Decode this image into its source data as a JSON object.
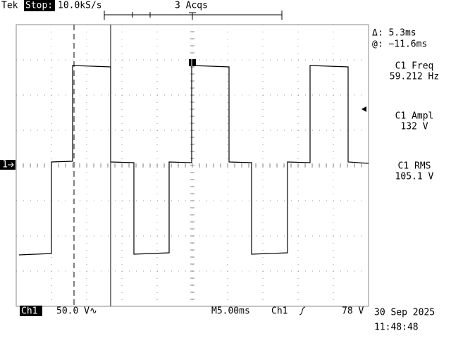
{
  "header": {
    "brand": "Tek",
    "state": "Stop:",
    "sample_rate": "10.0kS/s",
    "acquisitions": "3 Acqs"
  },
  "cursor": {
    "delta": "Δ: 5.3ms",
    "at": "@: −11.6ms"
  },
  "measurements": [
    {
      "name": "C1 Freq",
      "value": "59.212 Hz"
    },
    {
      "name": "C1 Ampl",
      "value": "132 V"
    },
    {
      "name": "C1 RMS",
      "value": "105.1 V"
    }
  ],
  "channel_marker": "1",
  "footer": {
    "channel": "Ch1",
    "scale": "50.0 V∿",
    "timebase": "M5.00ms",
    "trigger_source": "Ch1",
    "trigger_level": "78 V",
    "date": "30 Sep 2025",
    "time": "11:48:48"
  }
}
